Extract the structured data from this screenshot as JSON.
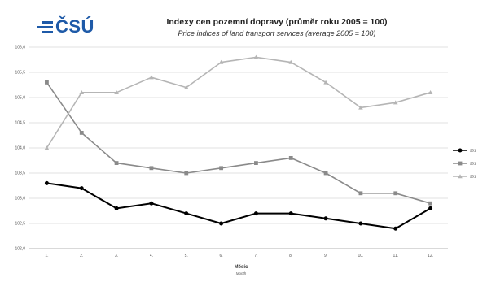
{
  "logo": {
    "text": "ČSÚ"
  },
  "chart_data": {
    "type": "line",
    "title": "Indexy cen pozemní dopravy (průměr roku 2005 = 100)",
    "subtitle": "Price indices of land transport services (average 2005 = 100)",
    "xlabel": "Měsíc",
    "xlabel_en": "Month",
    "categories": [
      "1.",
      "2.",
      "3.",
      "4.",
      "5.",
      "6.",
      "7.",
      "8.",
      "9.",
      "10.",
      "11.",
      "12."
    ],
    "ylim": [
      102.0,
      106.0
    ],
    "yticks": [
      "102,0",
      "102,5",
      "103,0",
      "103,5",
      "104,0",
      "104,5",
      "105,0",
      "105,5",
      "106,0"
    ],
    "grid": true,
    "legend_position": "right",
    "series": [
      {
        "name": "201",
        "color": "#000000",
        "marker": "circle",
        "values": [
          103.3,
          103.2,
          102.8,
          102.9,
          102.7,
          102.5,
          102.7,
          102.7,
          102.6,
          102.5,
          102.4,
          102.8
        ]
      },
      {
        "name": "201",
        "color": "#8a8a8a",
        "marker": "square",
        "values": [
          105.3,
          104.3,
          103.7,
          103.6,
          103.5,
          103.6,
          103.7,
          103.8,
          103.5,
          103.1,
          103.1,
          102.9
        ]
      },
      {
        "name": "201",
        "color": "#b5b5b5",
        "marker": "triangle",
        "values": [
          104.0,
          105.1,
          105.1,
          105.4,
          105.2,
          105.7,
          105.8,
          105.7,
          105.3,
          104.8,
          104.9,
          105.1
        ]
      }
    ]
  }
}
